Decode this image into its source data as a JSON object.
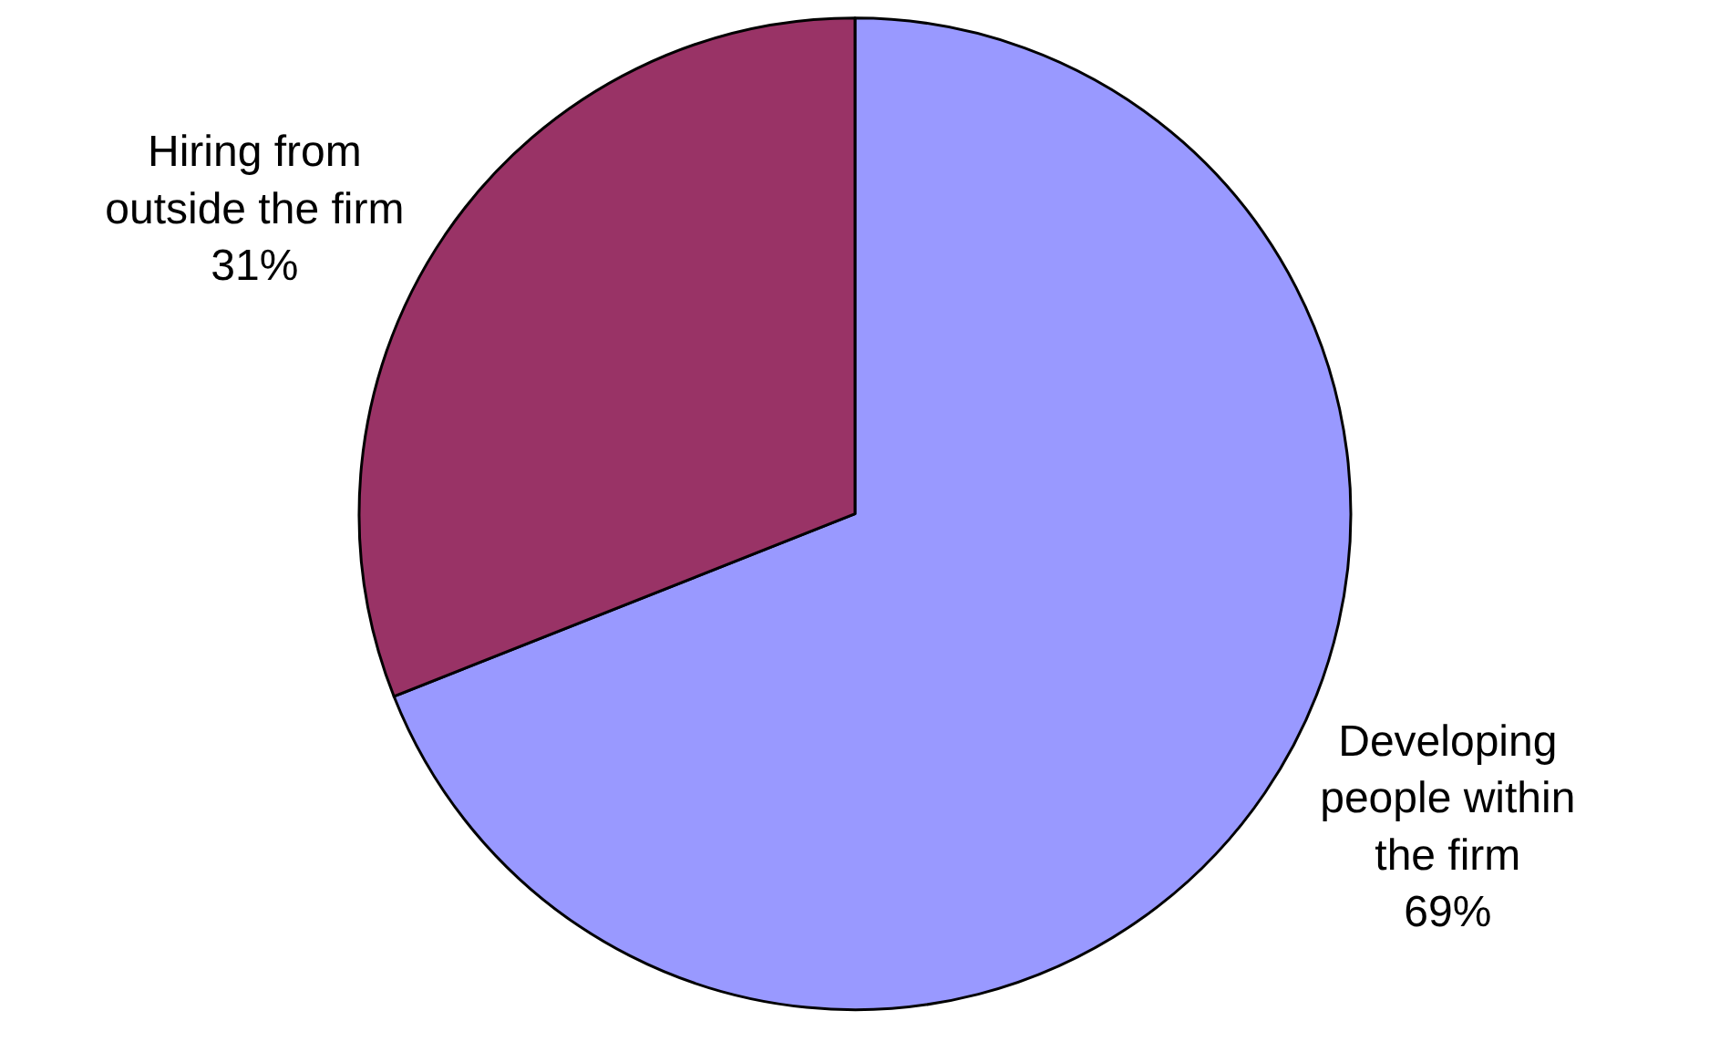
{
  "chart_data": {
    "type": "pie",
    "categories": [
      "Developing people within the firm",
      "Hiring from outside the firm"
    ],
    "values": [
      69,
      31
    ],
    "colors": [
      "#9999ff",
      "#993366"
    ],
    "value_labels": [
      "69%",
      "31%"
    ],
    "legend": false
  }
}
